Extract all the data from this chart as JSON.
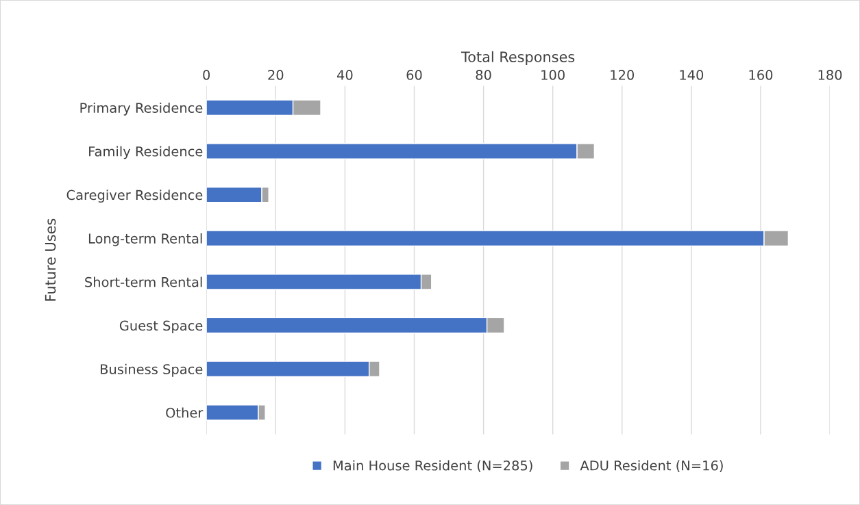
{
  "chart_data": {
    "type": "bar",
    "orientation": "horizontal",
    "stacked": true,
    "xlabel": "Total Responses",
    "ylabel": "Future Uses",
    "categories": [
      "Primary Residence",
      "Family Residence",
      "Caregiver Residence",
      "Long-term Rental",
      "Short-term Rental",
      "Guest Space",
      "Business Space",
      "Other"
    ],
    "series": [
      {
        "name": "Main House Resident (N=285)",
        "color": "#4472c4",
        "values": [
          25,
          107,
          16,
          161,
          62,
          81,
          47,
          15
        ]
      },
      {
        "name": "ADU Resident (N=16)",
        "color": "#a5a5a5",
        "values": [
          8,
          5,
          2,
          7,
          3,
          5,
          3,
          2
        ]
      }
    ],
    "xlim": [
      0,
      180
    ],
    "xticks": [
      0,
      20,
      40,
      60,
      80,
      100,
      120,
      140,
      160,
      180
    ],
    "grid": "x",
    "legend": "bottom"
  }
}
